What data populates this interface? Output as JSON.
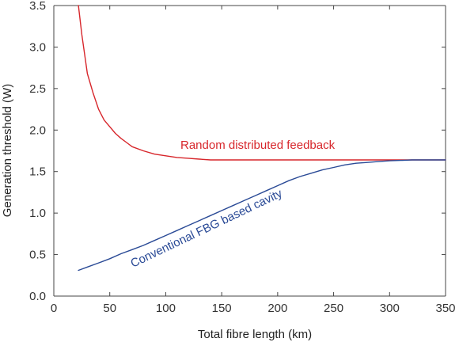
{
  "chart_data": {
    "type": "line",
    "xlabel": "Total fibre length (km)",
    "ylabel": "Generation threshold (W)",
    "xlim": [
      0,
      350
    ],
    "ylim": [
      0,
      3.5
    ],
    "x_ticks": [
      0,
      50,
      100,
      150,
      200,
      250,
      300,
      350
    ],
    "x_tick_labels": [
      "0",
      "50",
      "100",
      "150",
      "200",
      "250",
      "300",
      "350"
    ],
    "y_ticks": [
      0,
      0.5,
      1.0,
      1.5,
      2.0,
      2.5,
      3.0,
      3.5
    ],
    "y_tick_labels": [
      "0.0",
      "0.5",
      "1.0",
      "1.5",
      "2.0",
      "2.5",
      "3.0",
      "3.5"
    ],
    "grid": false,
    "series": [
      {
        "name": "Random distributed feedback",
        "color": "#d7262b",
        "x": [
          22,
          25,
          30,
          35,
          40,
          45,
          50,
          55,
          60,
          65,
          70,
          80,
          90,
          100,
          110,
          120,
          130,
          140,
          150,
          200,
          250,
          300,
          350
        ],
        "y": [
          3.5,
          3.15,
          2.68,
          2.45,
          2.25,
          2.12,
          2.04,
          1.96,
          1.9,
          1.85,
          1.8,
          1.75,
          1.71,
          1.69,
          1.67,
          1.66,
          1.65,
          1.64,
          1.64,
          1.64,
          1.64,
          1.64,
          1.64
        ]
      },
      {
        "name": "Conventional FBG based cavity",
        "color": "#2a4a96",
        "x": [
          22,
          30,
          40,
          50,
          60,
          70,
          80,
          90,
          100,
          110,
          120,
          130,
          140,
          150,
          160,
          170,
          180,
          190,
          200,
          210,
          220,
          230,
          240,
          250,
          260,
          270,
          280,
          290,
          300,
          310,
          320,
          330,
          340,
          350
        ],
        "y": [
          0.31,
          0.35,
          0.4,
          0.45,
          0.51,
          0.56,
          0.61,
          0.67,
          0.73,
          0.79,
          0.85,
          0.91,
          0.97,
          1.03,
          1.09,
          1.15,
          1.21,
          1.27,
          1.33,
          1.39,
          1.44,
          1.48,
          1.52,
          1.55,
          1.58,
          1.6,
          1.61,
          1.62,
          1.63,
          1.635,
          1.64,
          1.64,
          1.64,
          1.64
        ]
      }
    ],
    "annotations": [
      {
        "text": "Random distributed feedback",
        "series": 0
      },
      {
        "text": "Conventional FBG based cavity",
        "series": 1
      }
    ]
  }
}
